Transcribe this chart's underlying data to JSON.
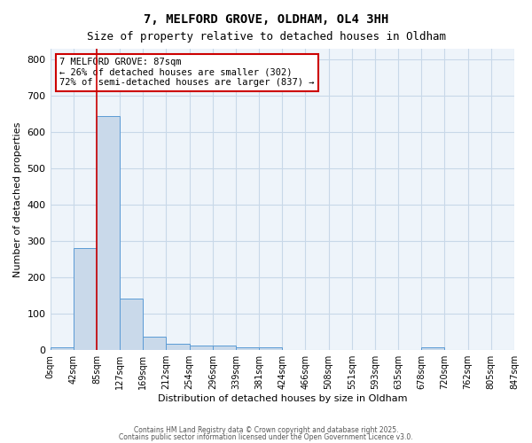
{
  "title1": "7, MELFORD GROVE, OLDHAM, OL4 3HH",
  "title2": "Size of property relative to detached houses in Oldham",
  "xlabel": "Distribution of detached houses by size in Oldham",
  "ylabel": "Number of detached properties",
  "bin_labels": [
    "0sqm",
    "42sqm",
    "85sqm",
    "127sqm",
    "169sqm",
    "212sqm",
    "254sqm",
    "296sqm",
    "339sqm",
    "381sqm",
    "424sqm",
    "466sqm",
    "508sqm",
    "551sqm",
    "593sqm",
    "635sqm",
    "678sqm",
    "720sqm",
    "762sqm",
    "805sqm",
    "847sqm"
  ],
  "bar_values": [
    8,
    280,
    645,
    142,
    37,
    17,
    12,
    12,
    8,
    8,
    0,
    0,
    0,
    0,
    0,
    0,
    8,
    0,
    0,
    0
  ],
  "bar_color": "#c9d9ea",
  "bar_edge_color": "#5b9bd5",
  "property_line_x": 2,
  "property_line_color": "#cc0000",
  "annotation_text": "7 MELFORD GROVE: 87sqm\n← 26% of detached houses are smaller (302)\n72% of semi-detached houses are larger (837) →",
  "annotation_box_color": "#cc0000",
  "ylim": [
    0,
    830
  ],
  "yticks": [
    0,
    100,
    200,
    300,
    400,
    500,
    600,
    700,
    800
  ],
  "grid_color": "#c8d8e8",
  "bg_color": "#eef4fa",
  "footer_line1": "Contains HM Land Registry data © Crown copyright and database right 2025.",
  "footer_line2": "Contains public sector information licensed under the Open Government Licence v3.0."
}
